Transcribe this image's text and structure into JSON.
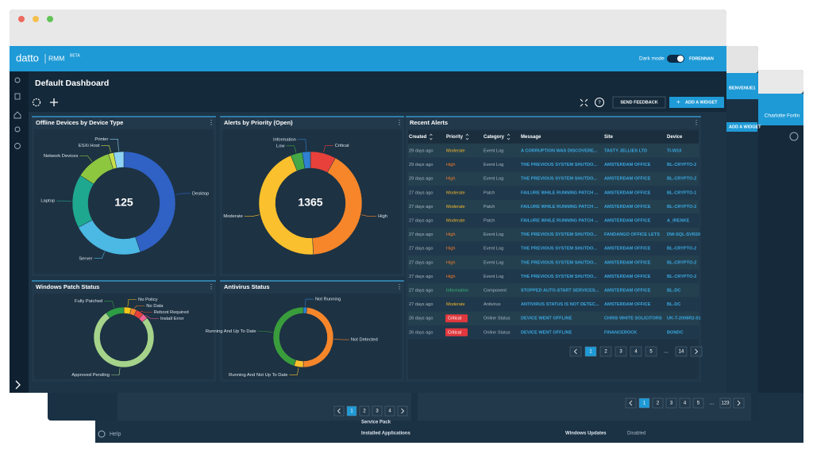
{
  "header": {
    "brand": "datto",
    "product": "RMM",
    "badge": "BETA",
    "dark_mode": "Dark mode",
    "user": "FDRENNAN"
  },
  "dashboard": {
    "title": "Default Dashboard",
    "send_feedback": "SEND FEEDBACK",
    "add_widget": "ADD A WIDGET"
  },
  "widgets": [
    {
      "title": "Offline Devices by Device Type",
      "total": 125,
      "segments": [
        {
          "label": "Desktop",
          "value": 56,
          "color": "#2f62c4"
        },
        {
          "label": "Server",
          "value": 28,
          "color": "#4cb8e4"
        },
        {
          "label": "Laptop",
          "value": 21,
          "color": "#1ea890"
        },
        {
          "label": "Network Devices",
          "value": 14,
          "color": "#8dc63f"
        },
        {
          "label": "ESXi Host",
          "value": 2,
          "color": "#c9df4a"
        },
        {
          "label": "Printer",
          "value": 4,
          "color": "#8fd3f5"
        }
      ]
    },
    {
      "title": "Alerts by Priority (Open)",
      "total": 1365,
      "segments": [
        {
          "label": "Critical",
          "value": 110,
          "color": "#e8413b"
        },
        {
          "label": "High",
          "value": 560,
          "color": "#f7862a"
        },
        {
          "label": "Moderate",
          "value": 610,
          "color": "#fbc02d"
        },
        {
          "label": "Low",
          "value": 50,
          "color": "#43a845"
        },
        {
          "label": "Information",
          "value": 35,
          "color": "#2f80d0"
        }
      ]
    },
    {
      "title": "Windows Patch Status",
      "segments": [
        {
          "label": "No Policy",
          "value": 4,
          "color": "#f5c518"
        },
        {
          "label": "No Data",
          "value": 3,
          "color": "#f7862a"
        },
        {
          "label": "Reboot Required",
          "value": 4,
          "color": "#e8413b"
        },
        {
          "label": "Install Error",
          "value": 3,
          "color": "#f06292"
        },
        {
          "label": "Approved Pending",
          "value": 76,
          "color": "#a5d38a"
        },
        {
          "label": "Fully Patched",
          "value": 10,
          "color": "#2e9e44"
        }
      ]
    },
    {
      "title": "Antivirus Status",
      "segments": [
        {
          "label": "Not Running",
          "value": 2,
          "color": "#2f80d0"
        },
        {
          "label": "Not Detected",
          "value": 48,
          "color": "#f7862a"
        },
        {
          "label": "Running And Not Up To Date",
          "value": 5,
          "color": "#fbc02d"
        },
        {
          "label": "Running And Up To Date",
          "value": 45,
          "color": "#3a9d3c"
        }
      ]
    }
  ],
  "alerts": {
    "title": "Recent Alerts",
    "columns": [
      "Created",
      "Priority",
      "Category",
      "Message",
      "Site",
      "Device"
    ],
    "rows": [
      [
        "29 days ago",
        "Moderate",
        "Event Log",
        "A CORRUPTION WAS DISCOVERE...",
        "TASTY JELLIES LTD",
        "TI-W10"
      ],
      [
        "29 days ago",
        "High",
        "Event Log",
        "THE PREVIOUS SYSTEM SHUTDO...",
        "AMSTERDAM OFFICE",
        "BL-CRYPTO-2"
      ],
      [
        "29 days ago",
        "High",
        "Event Log",
        "THE PREVIOUS SYSTEM SHUTDO...",
        "AMSTERDAM OFFICE",
        "BL-CRYPTO-2"
      ],
      [
        "27 days ago",
        "Moderate",
        "Patch",
        "FAILURE WHILE RUNNING PATCH ...",
        "AMSTERDAM OFFICE",
        "BL-CRYPTO-1"
      ],
      [
        "27 days ago",
        "Moderate",
        "Patch",
        "FAILURE WHILE RUNNING PATCH ...",
        "AMSTERDAM OFFICE",
        "BL-CRYPTO-2"
      ],
      [
        "27 days ago",
        "Moderate",
        "Patch",
        "FAILURE WHILE RUNNING PATCH ...",
        "AMSTERDAM OFFICE",
        "A_IRENKE"
      ],
      [
        "27 days ago",
        "High",
        "Event Log",
        "THE PREVIOUS SYSTEM SHUTDO...",
        "FANDANGO OFFICE LETS",
        "DW-SQL-SVR20"
      ],
      [
        "27 days ago",
        "High",
        "Event Log",
        "THE PREVIOUS SYSTEM SHUTDO...",
        "AMSTERDAM OFFICE",
        "BL-CRYPTO-2"
      ],
      [
        "27 days ago",
        "High",
        "Event Log",
        "THE PREVIOUS SYSTEM SHUTDO...",
        "AMSTERDAM OFFICE",
        "BL-CRYPTO-2"
      ],
      [
        "27 days ago",
        "High",
        "Event Log",
        "THE PREVIOUS SYSTEM SHUTDO...",
        "AMSTERDAM OFFICE",
        "BL-CRYPTO-2"
      ],
      [
        "27 days ago",
        "Information",
        "Component",
        "STOPPED AUTO-START SERVICES...",
        "AMSTERDAM OFFICE",
        "BL-DC"
      ],
      [
        "27 days ago",
        "Moderate",
        "Antivirus",
        "ANTIVIRUS STATUS IS NOT DETEC...",
        "AMSTERDAM OFFICE",
        "BL-DC"
      ],
      [
        "26 days ago",
        "Critical",
        "Online Status",
        "DEVICE WENT OFFLINE",
        "CHRIS WHITE SOLICITORS",
        "UK-T-2008R2-01"
      ],
      [
        "26 days ago",
        "Critical",
        "Online Status",
        "DEVICE WENT OFFLINE",
        "FINANCEROCK",
        "BONDC"
      ]
    ],
    "pagination": [
      "1",
      "2",
      "3",
      "4",
      "5",
      "…",
      "14"
    ]
  },
  "priority_colors": {
    "Moderate": {
      "fg": "#f5b82e"
    },
    "High": {
      "fg": "#f57c2a"
    },
    "Information": {
      "fg": "#3cb878"
    },
    "Critical": {
      "fg": "#ffffff",
      "bg": "#e0383e"
    }
  },
  "background": {
    "user_tag": "BENVENUE1",
    "add_widget": "ADD A WIDGET",
    "user": "Charlotte Forlin",
    "help": "Help",
    "fields": [
      "Service Pack",
      "Installed Applications",
      "Windows Updates",
      "Disabled"
    ],
    "pagination_a": [
      "1",
      "2",
      "3",
      "4"
    ],
    "pagination_b": [
      "1",
      "2",
      "3",
      "4",
      "5",
      "…",
      "123"
    ]
  }
}
